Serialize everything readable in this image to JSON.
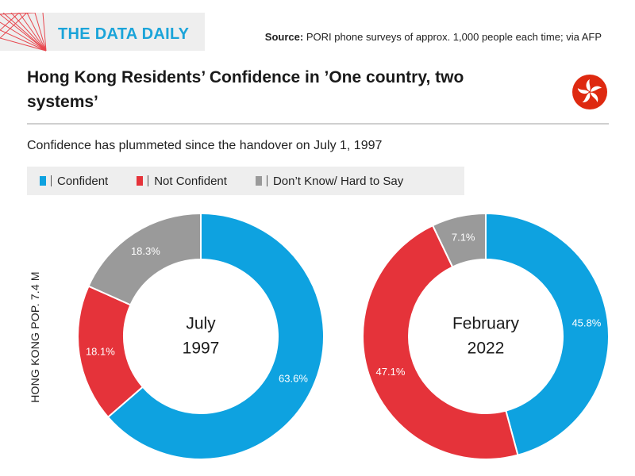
{
  "brand": {
    "name": "THE DATA DAILY",
    "accent": "#1ba4d9",
    "logo_line_color": "#e8474e"
  },
  "source": {
    "label": "Source:",
    "text": "PORI phone surveys of approx. 1,000 people each time; via AFP"
  },
  "title": "Hong Kong Residents’ Confidence in ’One country, two systems’",
  "flag": {
    "icon": "hong-kong-flag-icon",
    "color": "#de2910"
  },
  "subtitle": "Confidence has plummeted since the handover on July 1, 1997",
  "legend": [
    {
      "label": "Confident",
      "color": "#0ea2e0"
    },
    {
      "label": "Not Confident",
      "color": "#e5333a"
    },
    {
      "label": "Don’t Know/ Hard to Say",
      "color": "#9a9a9a"
    }
  ],
  "side_label": "HONG KONG POP. 7.4 M",
  "chart_data": {
    "type": "pie",
    "subtype": "donut",
    "title": "Hong Kong Residents’ Confidence in ’One country, two systems’",
    "categories": [
      "Confident",
      "Not Confident",
      "Don’t Know/ Hard to Say"
    ],
    "series": [
      {
        "name": "July 1997",
        "center_lines": [
          "July",
          "1997"
        ],
        "values": [
          63.6,
          18.1,
          18.3
        ],
        "labels": [
          "63.6%",
          "18.1%",
          "18.3%"
        ]
      },
      {
        "name": "February 2022",
        "center_lines": [
          "February",
          "2022"
        ],
        "values": [
          45.8,
          47.1,
          7.1
        ],
        "labels": [
          "45.8%",
          "47.1%",
          "7.1%"
        ]
      }
    ],
    "colors": [
      "#0ea2e0",
      "#e5333a",
      "#9a9a9a"
    ]
  }
}
